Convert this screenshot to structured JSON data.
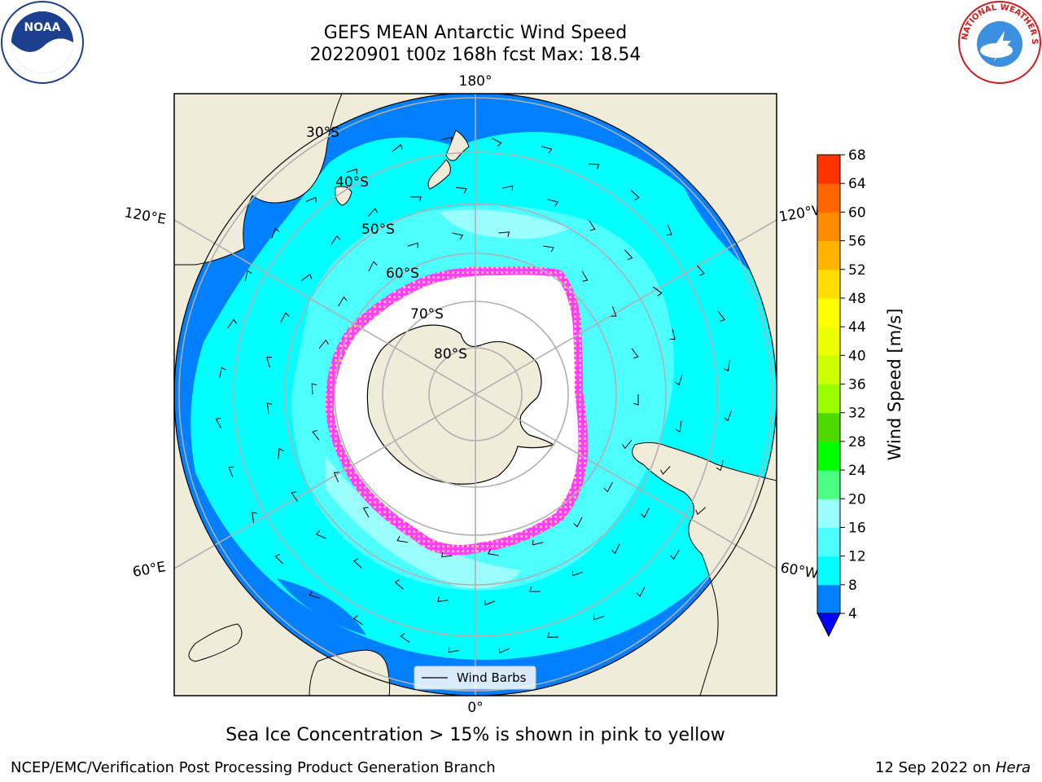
{
  "header": {
    "title_line1": "GEFS MEAN Antarctic Wind Speed",
    "title_line2": "20220901 t00z 168h fcst   Max: 18.54"
  },
  "logos": {
    "left": {
      "icon": "noaa-logo-icon",
      "text": "NOAA"
    },
    "right": {
      "icon": "nws-logo-icon",
      "text": "NATIONAL WEATHER SERVICE"
    }
  },
  "map": {
    "projection": "south-polar-stereographic",
    "lon_labels": {
      "top": "180°",
      "bottom": "0°",
      "upper_left": "120°E",
      "upper_right": "120°W",
      "lower_left": "60°E",
      "lower_right": "60°W"
    },
    "lat_labels": [
      "30°S",
      "40°S",
      "50°S",
      "60°S",
      "70°S",
      "80°S"
    ],
    "legend": {
      "label": "Wind Barbs"
    },
    "colors": {
      "land": "#efedda",
      "ocean_low": "#0080ff",
      "ocean_mid": "#00ffff",
      "ocean_high": "#99ffff",
      "ice": "#ffffff",
      "ice_edge": "#ff40ff",
      "gridline": "#b0b0b0"
    }
  },
  "colorbar": {
    "label": "Wind Speed [m/s]",
    "ticks": [
      "4",
      "8",
      "12",
      "16",
      "20",
      "24",
      "28",
      "32",
      "36",
      "40",
      "44",
      "48",
      "52",
      "56",
      "60",
      "64",
      "68"
    ],
    "colors": [
      "#0080ff",
      "#00ffff",
      "#4dffff",
      "#99ffff",
      "#4dff80",
      "#00ff00",
      "#4dd900",
      "#99ff00",
      "#ccff00",
      "#eeff00",
      "#ffff00",
      "#ffdd00",
      "#ffb300",
      "#ff8c00",
      "#ff6600",
      "#ff3300",
      "#ff0000"
    ],
    "underflow_color": "#0000ff"
  },
  "caption": "Sea Ice Concentration > 15% is shown in pink to yellow",
  "footer": {
    "left": "NCEP/EMC/Verification Post Processing Product Generation Branch",
    "right_prefix": "12 Sep 2022 on ",
    "right_host": "Hera"
  }
}
